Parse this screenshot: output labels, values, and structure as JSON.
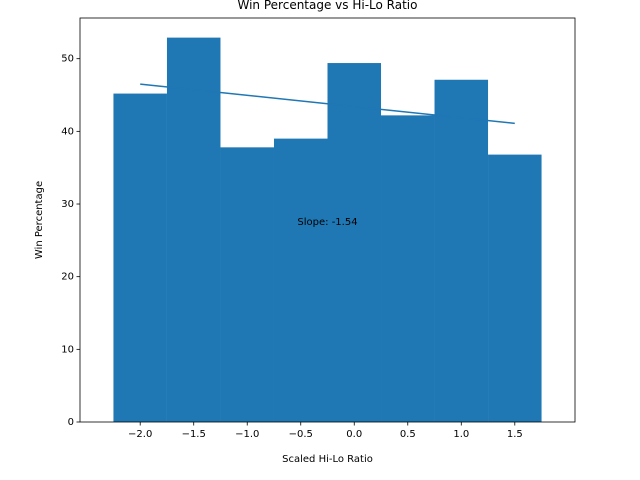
{
  "chart_data": {
    "type": "bar",
    "title": "Win Percentage vs Hi-Lo Ratio",
    "xlabel": "Scaled Hi-Lo Ratio",
    "ylabel": "Win Percentage",
    "xlim": [
      -2.5625,
      2.0625
    ],
    "ylim": [
      0,
      55.6
    ],
    "xticks": [
      -2.0,
      -1.5,
      -1.0,
      -0.5,
      0.0,
      0.5,
      1.0,
      1.5
    ],
    "xtick_labels": [
      "−2.0",
      "−1.5",
      "−1.0",
      "−0.5",
      "0.0",
      "0.5",
      "1.0",
      "1.5"
    ],
    "yticks": [
      0,
      10,
      20,
      30,
      40,
      50
    ],
    "ytick_labels": [
      "0",
      "10",
      "20",
      "30",
      "40",
      "50"
    ],
    "bar_width": 0.5,
    "x": [
      -2.0,
      -1.5,
      -1.0,
      -0.5,
      0.0,
      0.5,
      1.0,
      1.5
    ],
    "values": [
      45.2,
      52.9,
      37.8,
      39.0,
      49.4,
      42.2,
      47.1,
      36.8
    ],
    "bar_color": "#1f77b4",
    "trend_line": {
      "x": [
        -2.0,
        1.5
      ],
      "y": [
        46.5,
        41.1
      ],
      "color": "#1f77b4"
    },
    "annotation": {
      "text": "Slope: -1.54",
      "x": -0.25,
      "y": 27.5
    },
    "grid": false,
    "legend": "none"
  }
}
